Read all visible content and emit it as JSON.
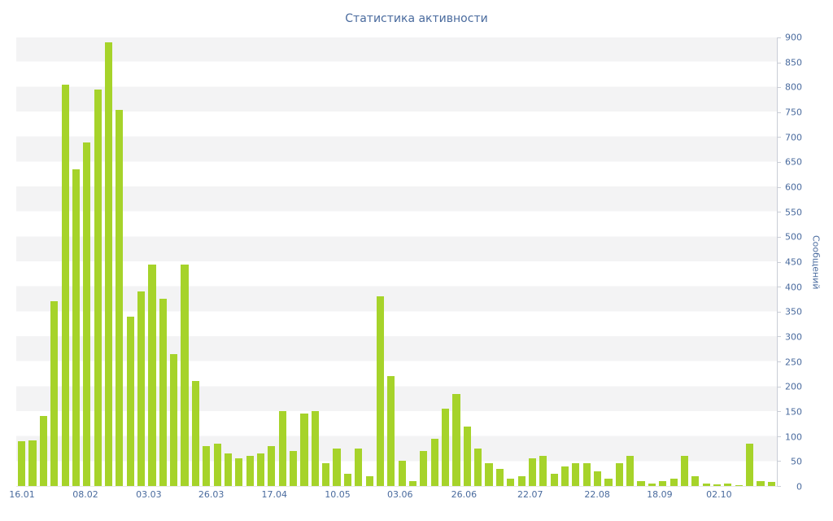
{
  "page": {
    "background": "#ffffff"
  },
  "chart_data": {
    "type": "bar",
    "title": "Статистика активности",
    "ylabel": "Сообщений",
    "xlabel": "",
    "ylim": [
      0,
      900
    ],
    "y_tick_step": 50,
    "grid": "alternating-horizontal-bands",
    "legend": false,
    "yaxis_position": "right",
    "colors": {
      "bar": "#a6d32a",
      "axis_text": "#4a6b9e",
      "band": "#f3f3f4",
      "axis_line": "#c9cdd6"
    },
    "x_ticks": [
      {
        "label": "16.01",
        "pos": 0.0075
      },
      {
        "label": "08.02",
        "pos": 0.0908
      },
      {
        "label": "03.03",
        "pos": 0.174
      },
      {
        "label": "26.03",
        "pos": 0.256
      },
      {
        "label": "17.04",
        "pos": 0.339
      },
      {
        "label": "10.05",
        "pos": 0.422
      },
      {
        "label": "03.06",
        "pos": 0.504
      },
      {
        "label": "26.06",
        "pos": 0.588
      },
      {
        "label": "22.07",
        "pos": 0.675
      },
      {
        "label": "22.08",
        "pos": 0.763
      },
      {
        "label": "18.09",
        "pos": 0.845
      },
      {
        "label": "02.10",
        "pos": 0.923
      }
    ],
    "values": [
      90,
      92,
      140,
      370,
      805,
      635,
      690,
      795,
      890,
      755,
      340,
      390,
      445,
      375,
      265,
      445,
      210,
      80,
      85,
      65,
      55,
      60,
      65,
      80,
      150,
      70,
      145,
      150,
      45,
      75,
      25,
      75,
      20,
      380,
      220,
      50,
      10,
      70,
      95,
      155,
      185,
      120,
      75,
      45,
      35,
      15,
      20,
      55,
      60,
      25,
      40,
      45,
      45,
      30,
      15,
      45,
      60,
      10,
      5,
      10,
      15,
      60,
      20,
      5,
      3,
      5,
      2,
      85,
      10,
      8
    ]
  }
}
